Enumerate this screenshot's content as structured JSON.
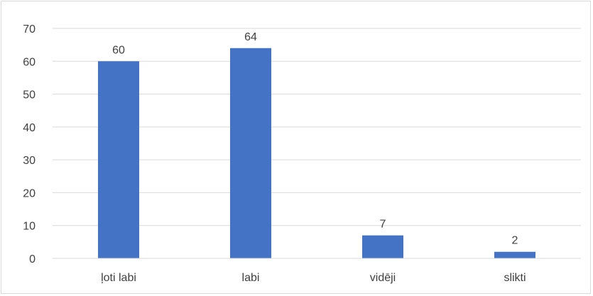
{
  "chart_data": {
    "type": "bar",
    "categories": [
      "ļoti labi",
      "labi",
      "vidēji",
      "slikti"
    ],
    "values": [
      60,
      64,
      7,
      2
    ],
    "data_labels": [
      "60",
      "64",
      "7",
      "2"
    ],
    "title": "",
    "xlabel": "",
    "ylabel": "",
    "ylim": [
      0,
      70
    ],
    "yticks": [
      0,
      10,
      20,
      30,
      40,
      50,
      60,
      70
    ],
    "ytick_labels": [
      "0",
      "10",
      "20",
      "30",
      "40",
      "50",
      "60",
      "70"
    ],
    "grid": true,
    "legend": "none",
    "colors": {
      "bar": "#4472c4",
      "grid": "#d9d9d9",
      "text": "#404040"
    }
  }
}
